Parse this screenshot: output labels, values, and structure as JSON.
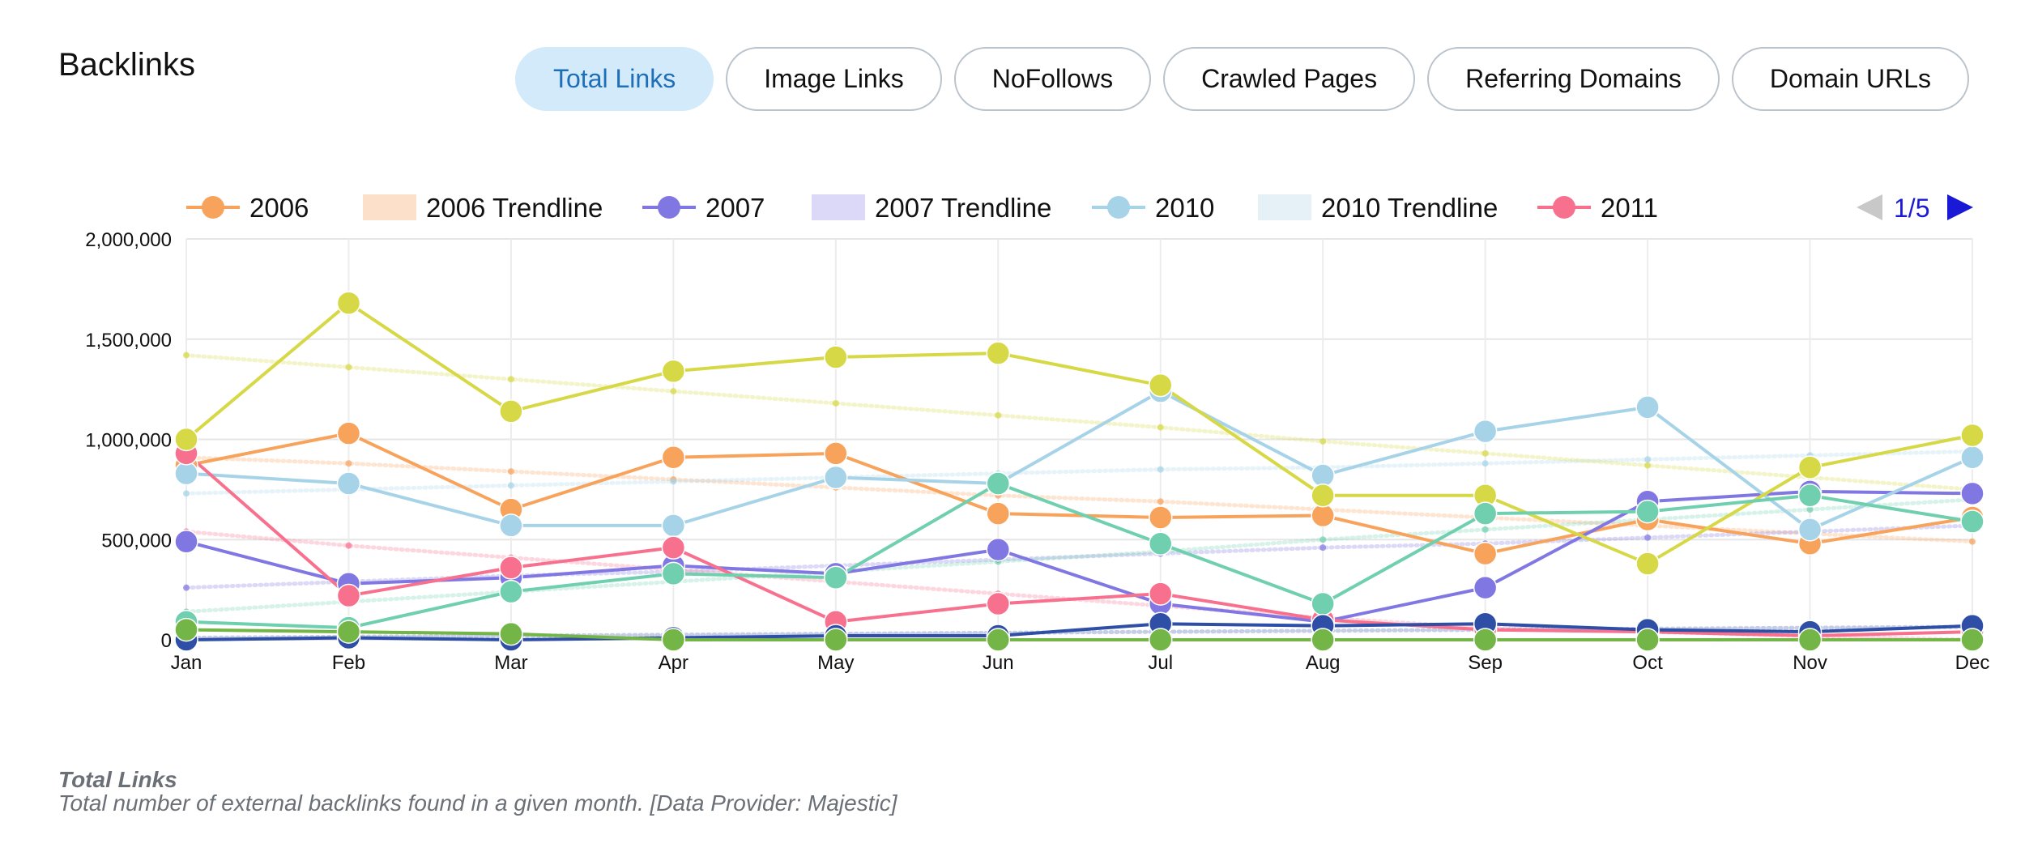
{
  "header": {
    "title": "Backlinks",
    "tabs": [
      {
        "label": "Total Links",
        "active": true
      },
      {
        "label": "Image Links",
        "active": false
      },
      {
        "label": "NoFollows",
        "active": false
      },
      {
        "label": "Crawled Pages",
        "active": false
      },
      {
        "label": "Referring Domains",
        "active": false
      },
      {
        "label": "Domain URLs",
        "active": false
      }
    ]
  },
  "pager": {
    "text": "1/5",
    "prev_icon": "triangle-left-icon",
    "next_icon": "triangle-right-icon",
    "prev_color": "#c8c8c8",
    "next_color": "#1a1ad6"
  },
  "caption": {
    "title": "Total Links",
    "text": "Total number of external backlinks found in a given month. [Data Provider: Majestic]"
  },
  "chart_data": {
    "type": "line",
    "categories": [
      "Jan",
      "Feb",
      "Mar",
      "Apr",
      "May",
      "Jun",
      "Jul",
      "Aug",
      "Sep",
      "Oct",
      "Nov",
      "Dec"
    ],
    "ylim": [
      0,
      2000000
    ],
    "yticks": [
      0,
      500000,
      1000000,
      1500000,
      2000000
    ],
    "ytick_labels": [
      "0",
      "500,000",
      "1,000,000",
      "1,500,000",
      "2,000,000"
    ],
    "grid": true,
    "legend_position": "top",
    "legend": [
      {
        "label": "2006",
        "color": "#f7a35c",
        "kind": "line"
      },
      {
        "label": "2006 Trendline",
        "color": "#fde0c9",
        "kind": "band"
      },
      {
        "label": "2007",
        "color": "#8177e3",
        "kind": "line"
      },
      {
        "label": "2007 Trendline",
        "color": "#dcd8f7",
        "kind": "band"
      },
      {
        "label": "2010",
        "color": "#a7d3e8",
        "kind": "line"
      },
      {
        "label": "2010 Trendline",
        "color": "#e5f0f7",
        "kind": "band"
      },
      {
        "label": "2011",
        "color": "#f7718f",
        "kind": "line"
      }
    ],
    "series": [
      {
        "name": "2006",
        "color": "#f7a35c",
        "values": [
          870000,
          1030000,
          650000,
          910000,
          930000,
          630000,
          610000,
          620000,
          430000,
          600000,
          480000,
          610000
        ]
      },
      {
        "name": "2007",
        "color": "#8177e3",
        "values": [
          490000,
          280000,
          310000,
          370000,
          330000,
          450000,
          180000,
          90000,
          260000,
          690000,
          740000,
          730000
        ]
      },
      {
        "name": "2010",
        "color": "#a7d3e8",
        "values": [
          830000,
          780000,
          570000,
          570000,
          810000,
          780000,
          1240000,
          820000,
          1040000,
          1160000,
          550000,
          910000
        ]
      },
      {
        "name": "2011",
        "color": "#f7718f",
        "values": [
          930000,
          220000,
          360000,
          460000,
          90000,
          180000,
          230000,
          100000,
          50000,
          40000,
          20000,
          40000
        ]
      },
      {
        "color": "#d6d846",
        "values": [
          1000000,
          1680000,
          1140000,
          1340000,
          1410000,
          1430000,
          1270000,
          720000,
          720000,
          380000,
          860000,
          1020000
        ]
      },
      {
        "color": "#6fcfaf",
        "values": [
          90000,
          60000,
          240000,
          330000,
          310000,
          780000,
          480000,
          180000,
          630000,
          640000,
          720000,
          590000
        ]
      },
      {
        "color": "#2f4ea6",
        "values": [
          0,
          10000,
          0,
          10000,
          20000,
          20000,
          80000,
          70000,
          80000,
          50000,
          40000,
          70000
        ]
      },
      {
        "color": "#74b547",
        "values": [
          50000,
          40000,
          30000,
          0,
          0,
          0,
          0,
          0,
          0,
          0,
          0,
          0
        ]
      }
    ],
    "trendlines": [
      {
        "name": "2006 Trendline",
        "color": "#f7a35c",
        "values": [
          910000,
          880000,
          840000,
          800000,
          760000,
          720000,
          690000,
          650000,
          610000,
          570000,
          530000,
          490000
        ]
      },
      {
        "name": "2007 Trendline",
        "color": "#8177e3",
        "values": [
          260000,
          290000,
          320000,
          340000,
          370000,
          400000,
          430000,
          460000,
          480000,
          510000,
          540000,
          570000
        ]
      },
      {
        "name": "2010 Trendline",
        "color": "#a7d3e8",
        "values": [
          730000,
          750000,
          770000,
          790000,
          810000,
          830000,
          850000,
          860000,
          880000,
          900000,
          920000,
          940000
        ]
      },
      {
        "color": "#f7718f",
        "values": [
          540000,
          470000,
          410000,
          350000,
          290000,
          230000,
          170000,
          110000,
          60000,
          40000,
          20000,
          0
        ]
      },
      {
        "color": "#d6d846",
        "values": [
          1420000,
          1360000,
          1300000,
          1240000,
          1180000,
          1120000,
          1060000,
          990000,
          930000,
          870000,
          810000,
          750000
        ]
      },
      {
        "color": "#6fcfaf",
        "values": [
          140000,
          190000,
          240000,
          290000,
          340000,
          390000,
          440000,
          500000,
          550000,
          600000,
          650000,
          700000
        ]
      },
      {
        "color": "#2f4ea6",
        "values": [
          10000,
          15000,
          20000,
          25000,
          30000,
          35000,
          40000,
          45000,
          50000,
          55000,
          60000,
          65000
        ]
      }
    ]
  }
}
